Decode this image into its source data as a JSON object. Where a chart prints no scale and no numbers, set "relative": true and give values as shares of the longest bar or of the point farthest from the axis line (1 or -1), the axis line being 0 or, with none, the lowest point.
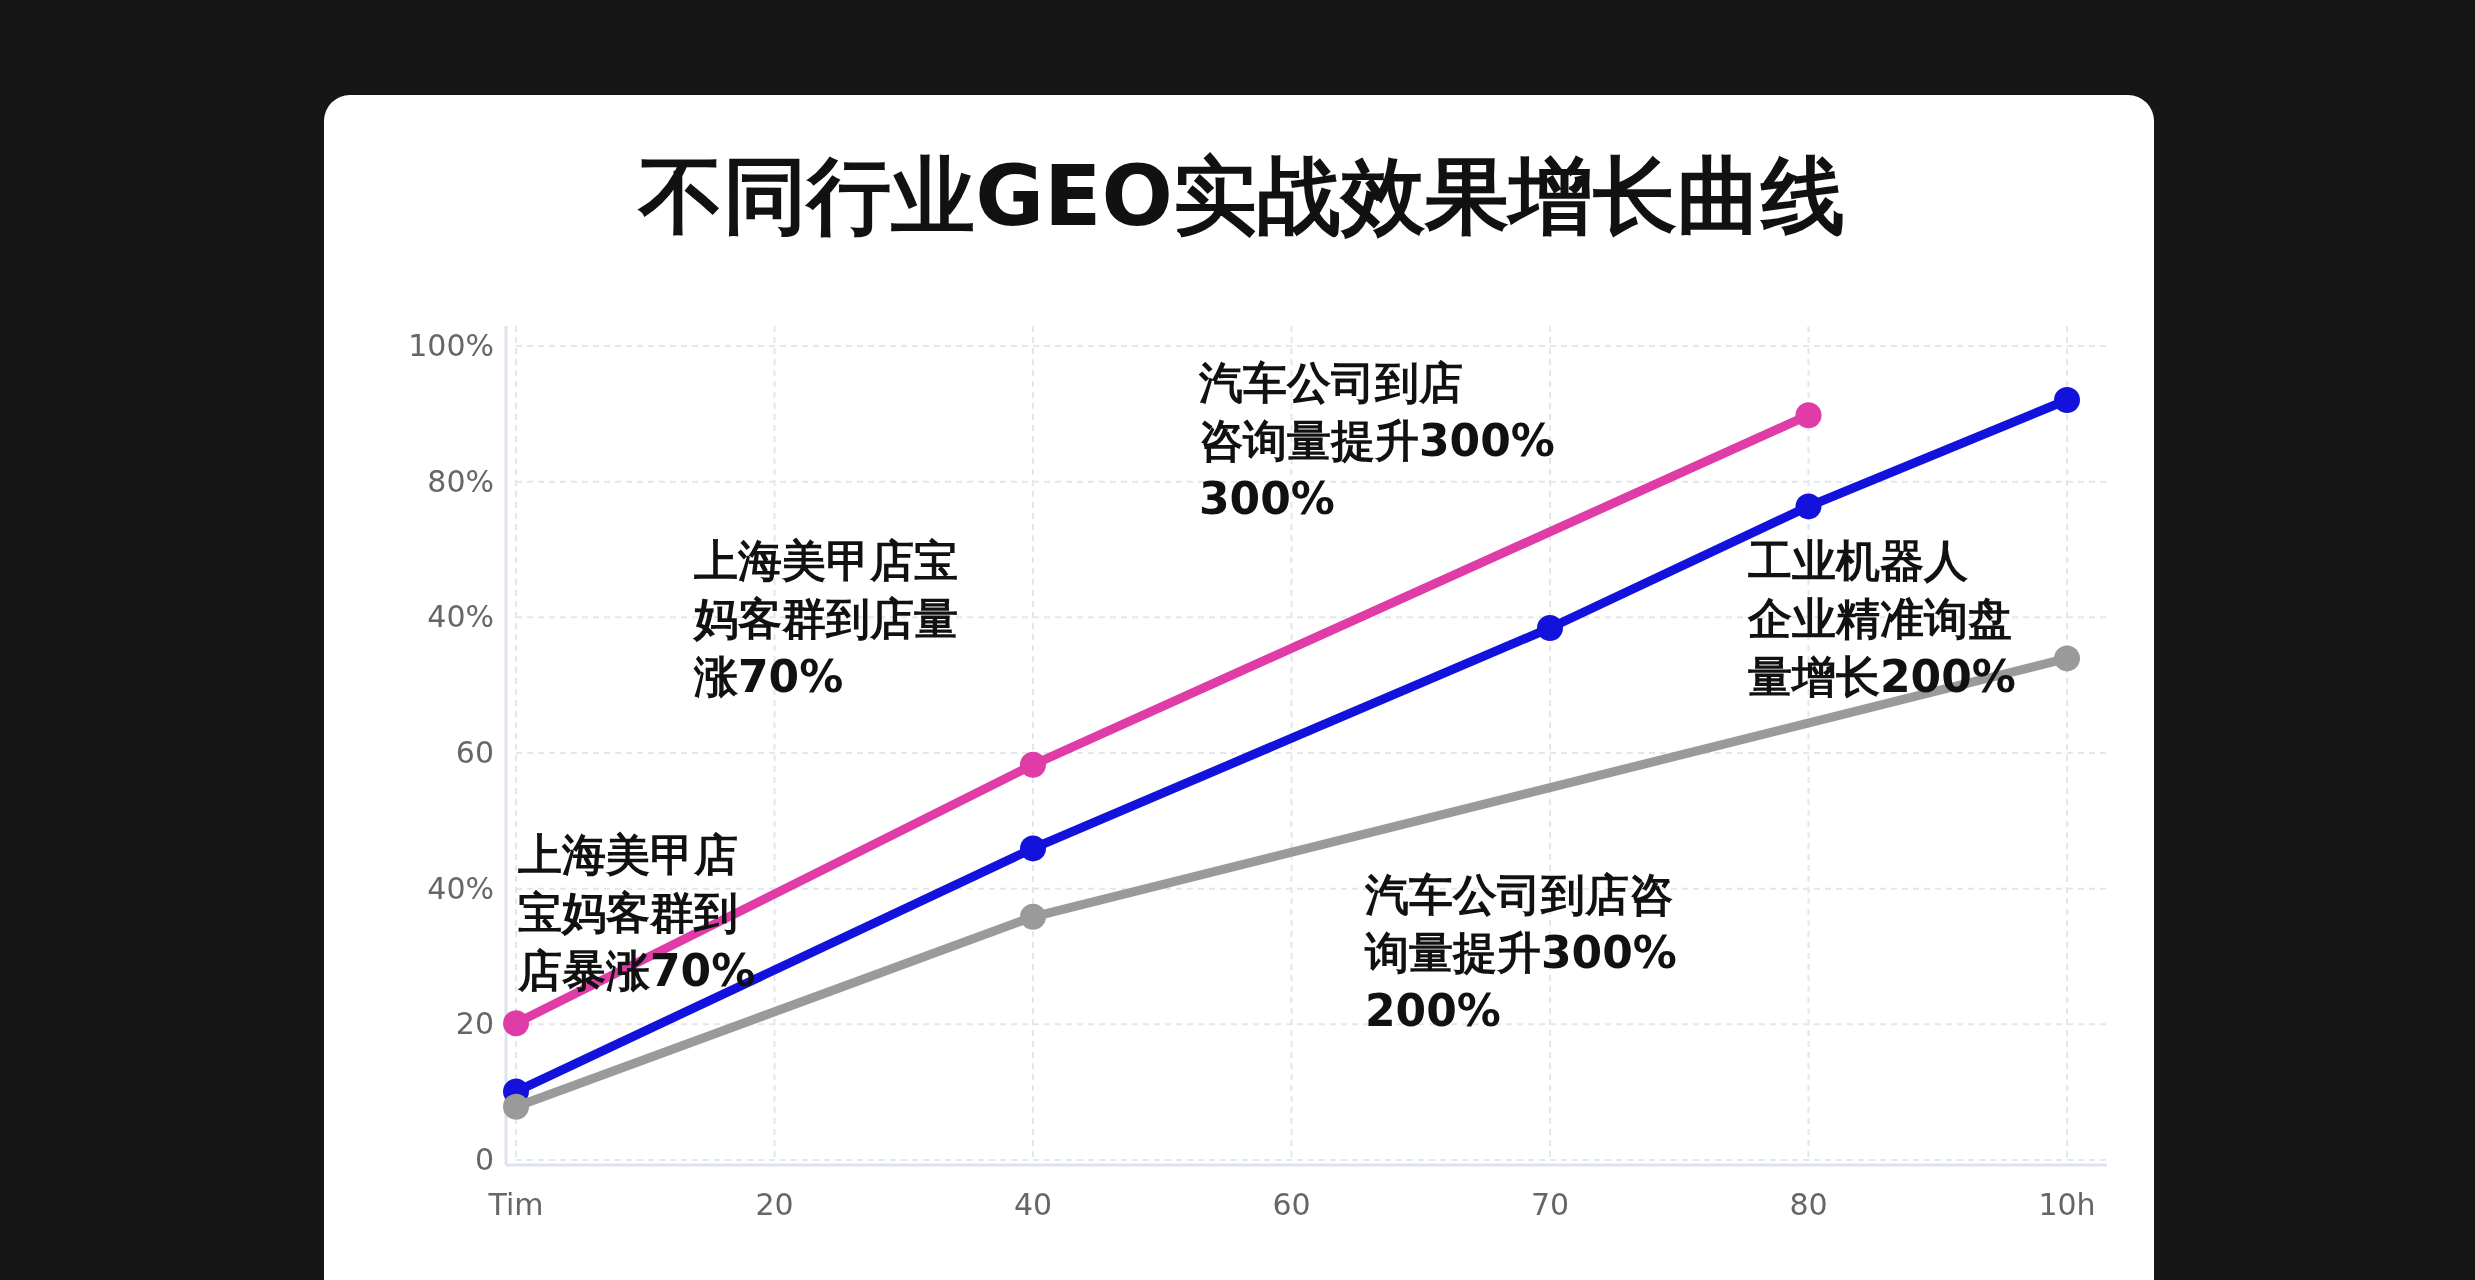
{
  "chart_data": {
    "type": "line",
    "title": "不同行业GEO实战效果增长曲线",
    "categories": [
      "Tim",
      "20",
      "40",
      "60",
      "70",
      "80",
      "10h"
    ],
    "relative": true,
    "series": [
      {
        "color": "#e03ca8",
        "values": [
          0.18,
          null,
          0.52,
          null,
          null,
          0.98,
          null
        ]
      },
      {
        "color": "#1212dc",
        "values": [
          0.09,
          null,
          0.41,
          null,
          0.7,
          0.86,
          1
        ]
      },
      {
        "color": "#9a9a9a",
        "values": [
          0.07,
          null,
          0.32,
          null,
          null,
          null,
          0.66
        ]
      }
    ],
    "annotations": [
      "0",
      "20",
      "40%",
      "60",
      "40%",
      "80%",
      "100%",
      "上海美甲店宝妈客群到店暴涨70%",
      "上海美甲店宝妈客群到店量涨70%",
      "汽车公司到店咨询量提升300%300%",
      "工业机器人企业精准询盘量增长200%",
      "汽车公司到店咨询量提升300%200%"
    ],
    "grid": true,
    "marker": "circle",
    "line_style": "solid"
  }
}
